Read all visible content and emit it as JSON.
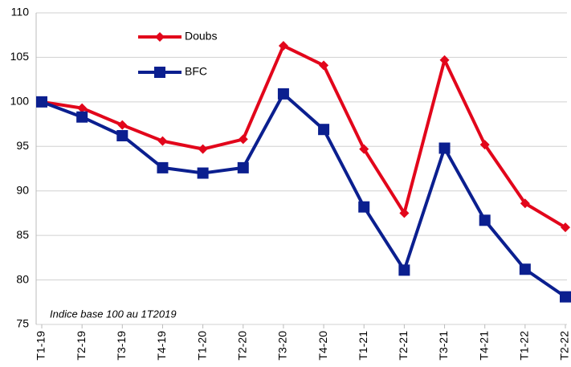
{
  "chart_data": {
    "type": "line",
    "annotation": "Indice base 100 au 1T2019",
    "categories": [
      "T1-19",
      "T2-19",
      "T3-19",
      "T4-19",
      "T1-20",
      "T2-20",
      "T3-20",
      "T4-20",
      "T1-21",
      "T2-21",
      "T3-21",
      "T4-21",
      "T1-22",
      "T2-22"
    ],
    "series": [
      {
        "name": "Doubs",
        "color": "#e2061b",
        "marker": "diamond",
        "values": [
          100,
          99.3,
          97.4,
          95.6,
          94.7,
          95.8,
          106.3,
          104.1,
          94.7,
          87.5,
          104.7,
          95.2,
          88.6,
          85.9
        ]
      },
      {
        "name": "BFC",
        "color": "#0b1f8f",
        "marker": "square",
        "values": [
          100,
          98.3,
          96.2,
          92.6,
          92.0,
          92.6,
          100.9,
          96.9,
          88.2,
          81.1,
          94.8,
          86.7,
          81.2,
          78.1
        ]
      }
    ],
    "ylim": [
      75,
      110
    ],
    "yticks": [
      75,
      80,
      85,
      90,
      95,
      100,
      105,
      110
    ],
    "grid": true,
    "legend": "top-left"
  }
}
